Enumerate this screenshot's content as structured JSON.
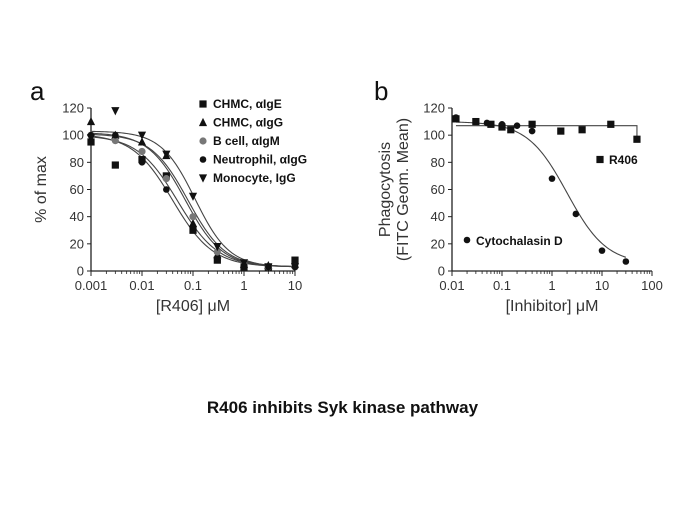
{
  "caption": "R406 inhibits Syk kinase pathway",
  "chart_data": [
    {
      "panel_label": "a",
      "type": "scatter",
      "xscale": "log",
      "xlabel": "[R406] μM",
      "ylabel": "% of max",
      "xlim": [
        0.001,
        10
      ],
      "ylim": [
        0,
        120
      ],
      "xticks": [
        0.001,
        0.01,
        0.1,
        1,
        10
      ],
      "xtick_labels": [
        "0.001",
        "0.01",
        "0.1",
        "1",
        "10"
      ],
      "yticks": [
        0,
        20,
        40,
        60,
        80,
        100,
        120
      ],
      "grid": false,
      "legend_position": "top-right",
      "series": [
        {
          "name": "CHMC, αIgE",
          "marker": "square",
          "x": [
            0.001,
            0.003,
            0.01,
            0.03,
            0.1,
            0.3,
            1,
            3,
            10
          ],
          "y": [
            95,
            78,
            82,
            70,
            30,
            8,
            3,
            3,
            8
          ],
          "fit_ic50": 0.08,
          "fit_top": 101,
          "fit_bottom": 3,
          "fit_hill": 1.2
        },
        {
          "name": "CHMC, αIgG",
          "marker": "triangle-up",
          "x": [
            0.001,
            0.003,
            0.01,
            0.03,
            0.1,
            0.3,
            1,
            3,
            10
          ],
          "y": [
            110,
            100,
            95,
            85,
            35,
            12,
            5,
            4,
            5
          ],
          "fit_ic50": 0.07,
          "fit_top": 102,
          "fit_bottom": 3,
          "fit_hill": 1.2
        },
        {
          "name": "B cell, αIgM",
          "marker": "circle-light",
          "x": [
            0.001,
            0.003,
            0.01,
            0.03,
            0.1,
            0.3,
            1,
            3,
            10
          ],
          "y": [
            100,
            96,
            88,
            68,
            40,
            14,
            5,
            3,
            3
          ],
          "fit_ic50": 0.05,
          "fit_top": 100,
          "fit_bottom": 3,
          "fit_hill": 1.1
        },
        {
          "name": "Neutrophil, αIgG",
          "marker": "circle",
          "x": [
            0.001,
            0.003,
            0.01,
            0.03,
            0.1,
            0.3,
            1,
            3,
            10
          ],
          "y": [
            100,
            100,
            80,
            60,
            32,
            8,
            4,
            3,
            3
          ],
          "fit_ic50": 0.04,
          "fit_top": 101,
          "fit_bottom": 3,
          "fit_hill": 1.1
        },
        {
          "name": "Monocyte, IgG",
          "marker": "triangle-down",
          "x": [
            0.001,
            0.003,
            0.01,
            0.03,
            0.1,
            0.3,
            1,
            3,
            10
          ],
          "y": [
            98,
            118,
            100,
            86,
            55,
            18,
            6,
            3,
            3
          ],
          "fit_ic50": 0.11,
          "fit_top": 103,
          "fit_bottom": 3,
          "fit_hill": 1.3
        }
      ]
    },
    {
      "panel_label": "b",
      "type": "scatter",
      "xscale": "log",
      "xlabel": "[Inhibitor] μM",
      "ylabel": "Phagocytosis",
      "ylabel2": "(FITC Geom. Mean)",
      "xlim": [
        0.01,
        100
      ],
      "ylim": [
        0,
        120
      ],
      "xticks": [
        0.01,
        0.1,
        1,
        10,
        100
      ],
      "xtick_labels": [
        "0.01",
        "0.1",
        "1",
        "10",
        "100"
      ],
      "yticks": [
        0,
        20,
        40,
        60,
        80,
        100,
        120
      ],
      "grid": false,
      "series": [
        {
          "name": "R406",
          "marker": "square",
          "x": [
            0.012,
            0.03,
            0.06,
            0.1,
            0.15,
            0.4,
            1.5,
            4,
            15,
            50
          ],
          "y": [
            112,
            110,
            108,
            106,
            104,
            108,
            103,
            104,
            108,
            97
          ],
          "fit": "flat",
          "fit_value": 107,
          "fit_xmax": 50,
          "fit_end": 99
        },
        {
          "name": "Cytochalasin D",
          "marker": "circle",
          "x": [
            0.012,
            0.03,
            0.05,
            0.1,
            0.2,
            0.4,
            1,
            3,
            10,
            30
          ],
          "y": [
            113,
            110,
            109,
            108,
            107,
            103,
            68,
            42,
            15,
            7
          ],
          "fit_ic50": 2,
          "fit_top": 110,
          "fit_bottom": 5,
          "fit_hill": 1.1
        }
      ]
    }
  ]
}
